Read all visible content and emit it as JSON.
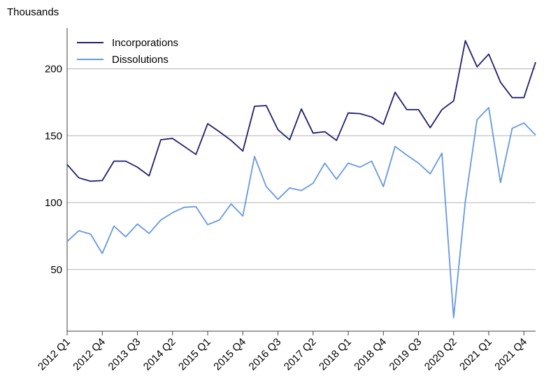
{
  "chart_data": {
    "type": "line",
    "ylabel": "Thousands",
    "xlabel": "",
    "title": "",
    "ylim": [
      0,
      230
    ],
    "yticks": [
      50,
      100,
      150,
      200
    ],
    "grid": "horizontal",
    "legend_position": "top-left",
    "x": [
      "2012 Q1",
      "2012 Q2",
      "2012 Q3",
      "2012 Q4",
      "2013 Q1",
      "2013 Q2",
      "2013 Q3",
      "2013 Q4",
      "2014 Q1",
      "2014 Q2",
      "2014 Q3",
      "2014 Q4",
      "2015 Q1",
      "2015 Q2",
      "2015 Q3",
      "2015 Q4",
      "2016 Q1",
      "2016 Q2",
      "2016 Q3",
      "2016 Q4",
      "2017 Q1",
      "2017 Q2",
      "2017 Q3",
      "2017 Q4",
      "2018 Q1",
      "2018 Q2",
      "2018 Q3",
      "2018 Q4",
      "2019 Q1",
      "2019 Q2",
      "2019 Q3",
      "2019 Q4",
      "2020 Q1",
      "2020 Q2",
      "2020 Q3",
      "2020 Q4",
      "2021 Q1",
      "2021 Q2",
      "2021 Q3",
      "2021 Q4",
      "2022 Q1"
    ],
    "xtick_labels": [
      "2012 Q1",
      "2012 Q4",
      "2013 Q3",
      "2014 Q2",
      "2015 Q1",
      "2015 Q4",
      "2016 Q3",
      "2017 Q2",
      "2018 Q1",
      "2018 Q4",
      "2019 Q3",
      "2020 Q2",
      "2021 Q1",
      "2021 Q4"
    ],
    "series": [
      {
        "name": "Incorporations",
        "color": "#1f1f6e",
        "values": [
          128.5,
          118.5,
          116,
          116.5,
          131,
          131,
          126.5,
          120,
          147,
          148,
          142,
          136,
          159,
          153,
          146.5,
          138.5,
          172,
          172.5,
          154.5,
          147,
          170,
          152,
          153,
          146.5,
          167,
          166.5,
          164,
          158.5,
          182.5,
          169.5,
          169.5,
          156,
          169.5,
          176,
          221,
          201.5,
          211,
          190,
          178.5,
          178.5,
          205
        ]
      },
      {
        "name": "Dissolutions",
        "color": "#6699e0",
        "values": [
          71,
          79,
          76.5,
          62,
          82.5,
          74.5,
          84,
          77,
          87,
          92.5,
          96.5,
          97,
          83.5,
          87,
          99,
          90,
          134.5,
          112,
          102.5,
          111,
          109,
          114.5,
          129.5,
          117.5,
          129.5,
          126.5,
          131,
          112,
          142,
          135.5,
          129.5,
          121.5,
          137,
          14,
          101,
          162,
          171,
          115,
          155.5,
          159.5,
          150.5
        ]
      }
    ]
  }
}
